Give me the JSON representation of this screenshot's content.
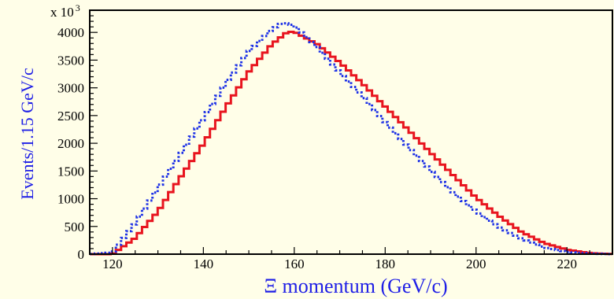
{
  "chart_data": {
    "type": "line",
    "xlabel": "Ξ momentum (GeV/c)",
    "ylabel": "Events/1.15 GeV/c",
    "y_multiplier": "x 10",
    "y_multiplier_exp": "3",
    "xlim": [
      115,
      230
    ],
    "ylim": [
      0,
      4400
    ],
    "x_ticks": [
      120,
      140,
      160,
      180,
      200,
      220
    ],
    "y_ticks": [
      0,
      500,
      1000,
      1500,
      2000,
      2500,
      3000,
      3500,
      4000
    ],
    "grid": false,
    "legend": "none",
    "colors": {
      "background": "#FFFEE8",
      "axis_title": "#1E1EE6",
      "series_solid": "#E8141E",
      "series_dotted": "#1E32E6"
    },
    "series": [
      {
        "style": "solid-step",
        "x": [
          115,
          120,
          125,
          130,
          135,
          140,
          145,
          150,
          155,
          158.5,
          160,
          165,
          170,
          175,
          180,
          185,
          190,
          195,
          200,
          205,
          210,
          215,
          220,
          225,
          230
        ],
        "y": [
          0,
          0,
          290,
          770,
          1390,
          1990,
          2660,
          3290,
          3780,
          4010,
          4010,
          3790,
          3460,
          3080,
          2660,
          2250,
          1830,
          1420,
          1020,
          690,
          400,
          200,
          80,
          20,
          0
        ]
      },
      {
        "style": "dotted-step",
        "x": [
          115,
          120,
          125,
          130,
          135,
          140,
          145,
          150,
          155,
          157.5,
          160,
          165,
          170,
          175,
          180,
          185,
          190,
          195,
          200,
          205,
          210,
          215,
          220,
          225,
          230
        ],
        "y": [
          0,
          30,
          560,
          1190,
          1810,
          2450,
          3090,
          3660,
          4050,
          4180,
          4120,
          3740,
          3280,
          2850,
          2380,
          1940,
          1510,
          1110,
          770,
          490,
          280,
          120,
          40,
          10,
          0
        ]
      }
    ]
  }
}
